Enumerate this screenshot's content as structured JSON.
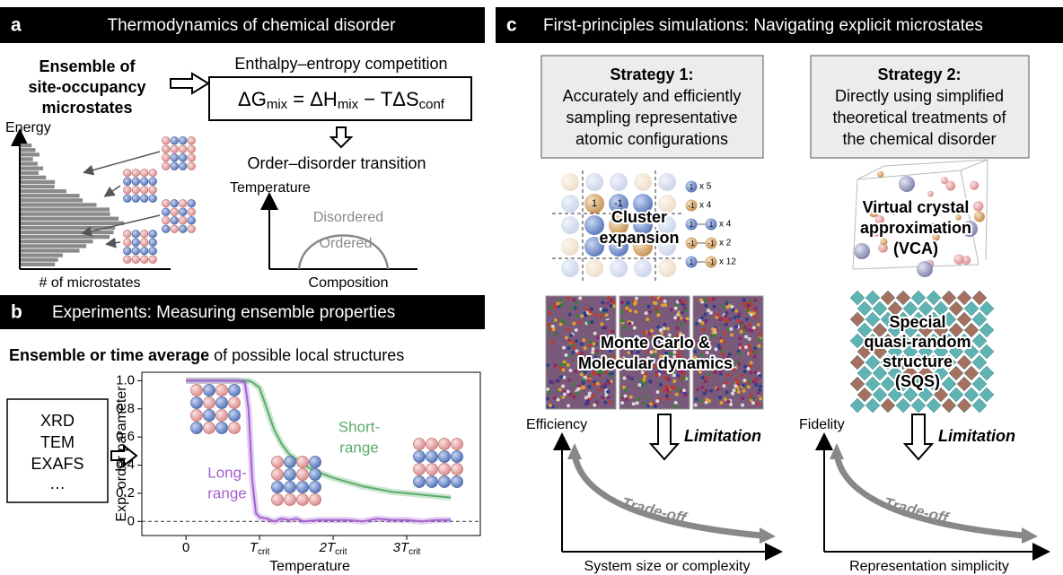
{
  "panel_a": {
    "letter": "a",
    "title": "Thermodynamics of chemical disorder",
    "ensemble_lines": [
      "Ensemble of",
      "site-occupancy",
      "microstates"
    ],
    "competition_label": "Enthalpy–entropy competition",
    "equation": [
      "ΔG",
      "mix",
      " = ΔH",
      "mix",
      " − TΔS",
      "conf"
    ],
    "transition_label": "Order–disorder transition",
    "energy_axis": "Energy",
    "count_axis": "# of microstates",
    "temperature_axis": "Temperature",
    "composition_axis": "Composition",
    "disordered": "Disordered",
    "ordered": "Ordered"
  },
  "panel_b": {
    "letter": "b",
    "title": "Experiments: Measuring ensemble properties",
    "subtitle_bold": "Ensemble or time average",
    "subtitle_rest": " of possible local structures",
    "techniques": [
      "XRD",
      "TEM",
      "EXAFS",
      "…"
    ]
  },
  "chart_data": {
    "type": "line",
    "x_label": "Temperature",
    "y_label": "Exp. order parameter",
    "x": [
      0,
      0.2,
      0.4,
      0.6,
      0.7,
      0.8,
      0.85,
      0.9,
      0.95,
      1.0,
      1.1,
      1.2,
      1.3,
      1.4,
      1.5,
      1.6,
      1.8,
      2.0,
      2.2,
      2.4,
      2.6,
      2.8,
      3.0,
      3.2,
      3.4,
      3.6
    ],
    "series": [
      {
        "label_lines": [
          "Short-",
          "range"
        ],
        "color": "#5aad6a",
        "values": [
          1.0,
          1.0,
          1.0,
          1.0,
          1.0,
          1.0,
          1.0,
          0.99,
          0.97,
          0.95,
          0.8,
          0.65,
          0.55,
          0.48,
          0.44,
          0.4,
          0.35,
          0.31,
          0.28,
          0.25,
          0.23,
          0.21,
          0.2,
          0.19,
          0.18,
          0.17
        ]
      },
      {
        "label_lines": [
          "Long-",
          "range"
        ],
        "color": "#a25fd0",
        "values": [
          1.0,
          1.0,
          1.0,
          1.0,
          1.0,
          0.99,
          0.8,
          0.3,
          0.06,
          0.03,
          0.02,
          0.0,
          0.02,
          0.01,
          0.02,
          0.0,
          0.01,
          0.01,
          0.01,
          0.0,
          0.02,
          0.01,
          0.01,
          0.0,
          0.01,
          0.01
        ]
      }
    ],
    "reference_line": 0,
    "xlim": [
      -0.6,
      4.0
    ],
    "ylim": [
      -0.1,
      1.06
    ],
    "xticks": [
      0,
      {
        "value": 1,
        "label": "T"
      },
      {
        "value": 2,
        "label": "2T"
      },
      {
        "value": 3,
        "label": "3T"
      }
    ],
    "xtick_subscript": "crit",
    "yticks": [
      0,
      0.2,
      0.4,
      0.6,
      0.8,
      {
        "value": 1,
        "label": "1.0"
      }
    ]
  },
  "panel_c": {
    "letter": "c",
    "title": "First-principles simulations: Navigating explicit microstates",
    "strategy_1": {
      "title": "Strategy 1:",
      "lines": [
        "Accurately and efficiently",
        "sampling representative",
        "atomic configurations"
      ]
    },
    "strategy_2": {
      "title": "Strategy 2:",
      "lines": [
        "Directly using simplified",
        "theoretical treatments of",
        "the chemical disorder"
      ]
    },
    "cluster_lines": [
      "Cluster",
      "expansion"
    ],
    "cluster_site_labels": [
      "1",
      "-1"
    ],
    "cluster_legend": [
      {
        "sites": [
          "1"
        ],
        "count": "x 5"
      },
      {
        "sites": [
          "-1"
        ],
        "count": "x 4"
      },
      {
        "sites": [
          "1",
          "1"
        ],
        "count": "x 4"
      },
      {
        "sites": [
          "-1",
          "-1"
        ],
        "count": "x 2"
      },
      {
        "sites": [
          "1",
          "-1"
        ],
        "count": "x 12"
      }
    ],
    "md_lines": [
      "Monte Carlo &",
      "Molecular dynamics"
    ],
    "vca_lines": [
      "Virtual crystal",
      "approximation",
      "(VCA)"
    ],
    "sqs_lines": [
      "Special",
      "quasi-random",
      "structure",
      "(SQS)"
    ],
    "tradeoff_1": {
      "y_label": "Efficiency",
      "limitation": "Limitation",
      "curve_label": "Trade-off",
      "x_label": "System size or complexity"
    },
    "tradeoff_2": {
      "y_label": "Fidelity",
      "limitation": "Limitation",
      "curve_label": "Trade-off",
      "x_label": "Representation simplicity"
    }
  }
}
